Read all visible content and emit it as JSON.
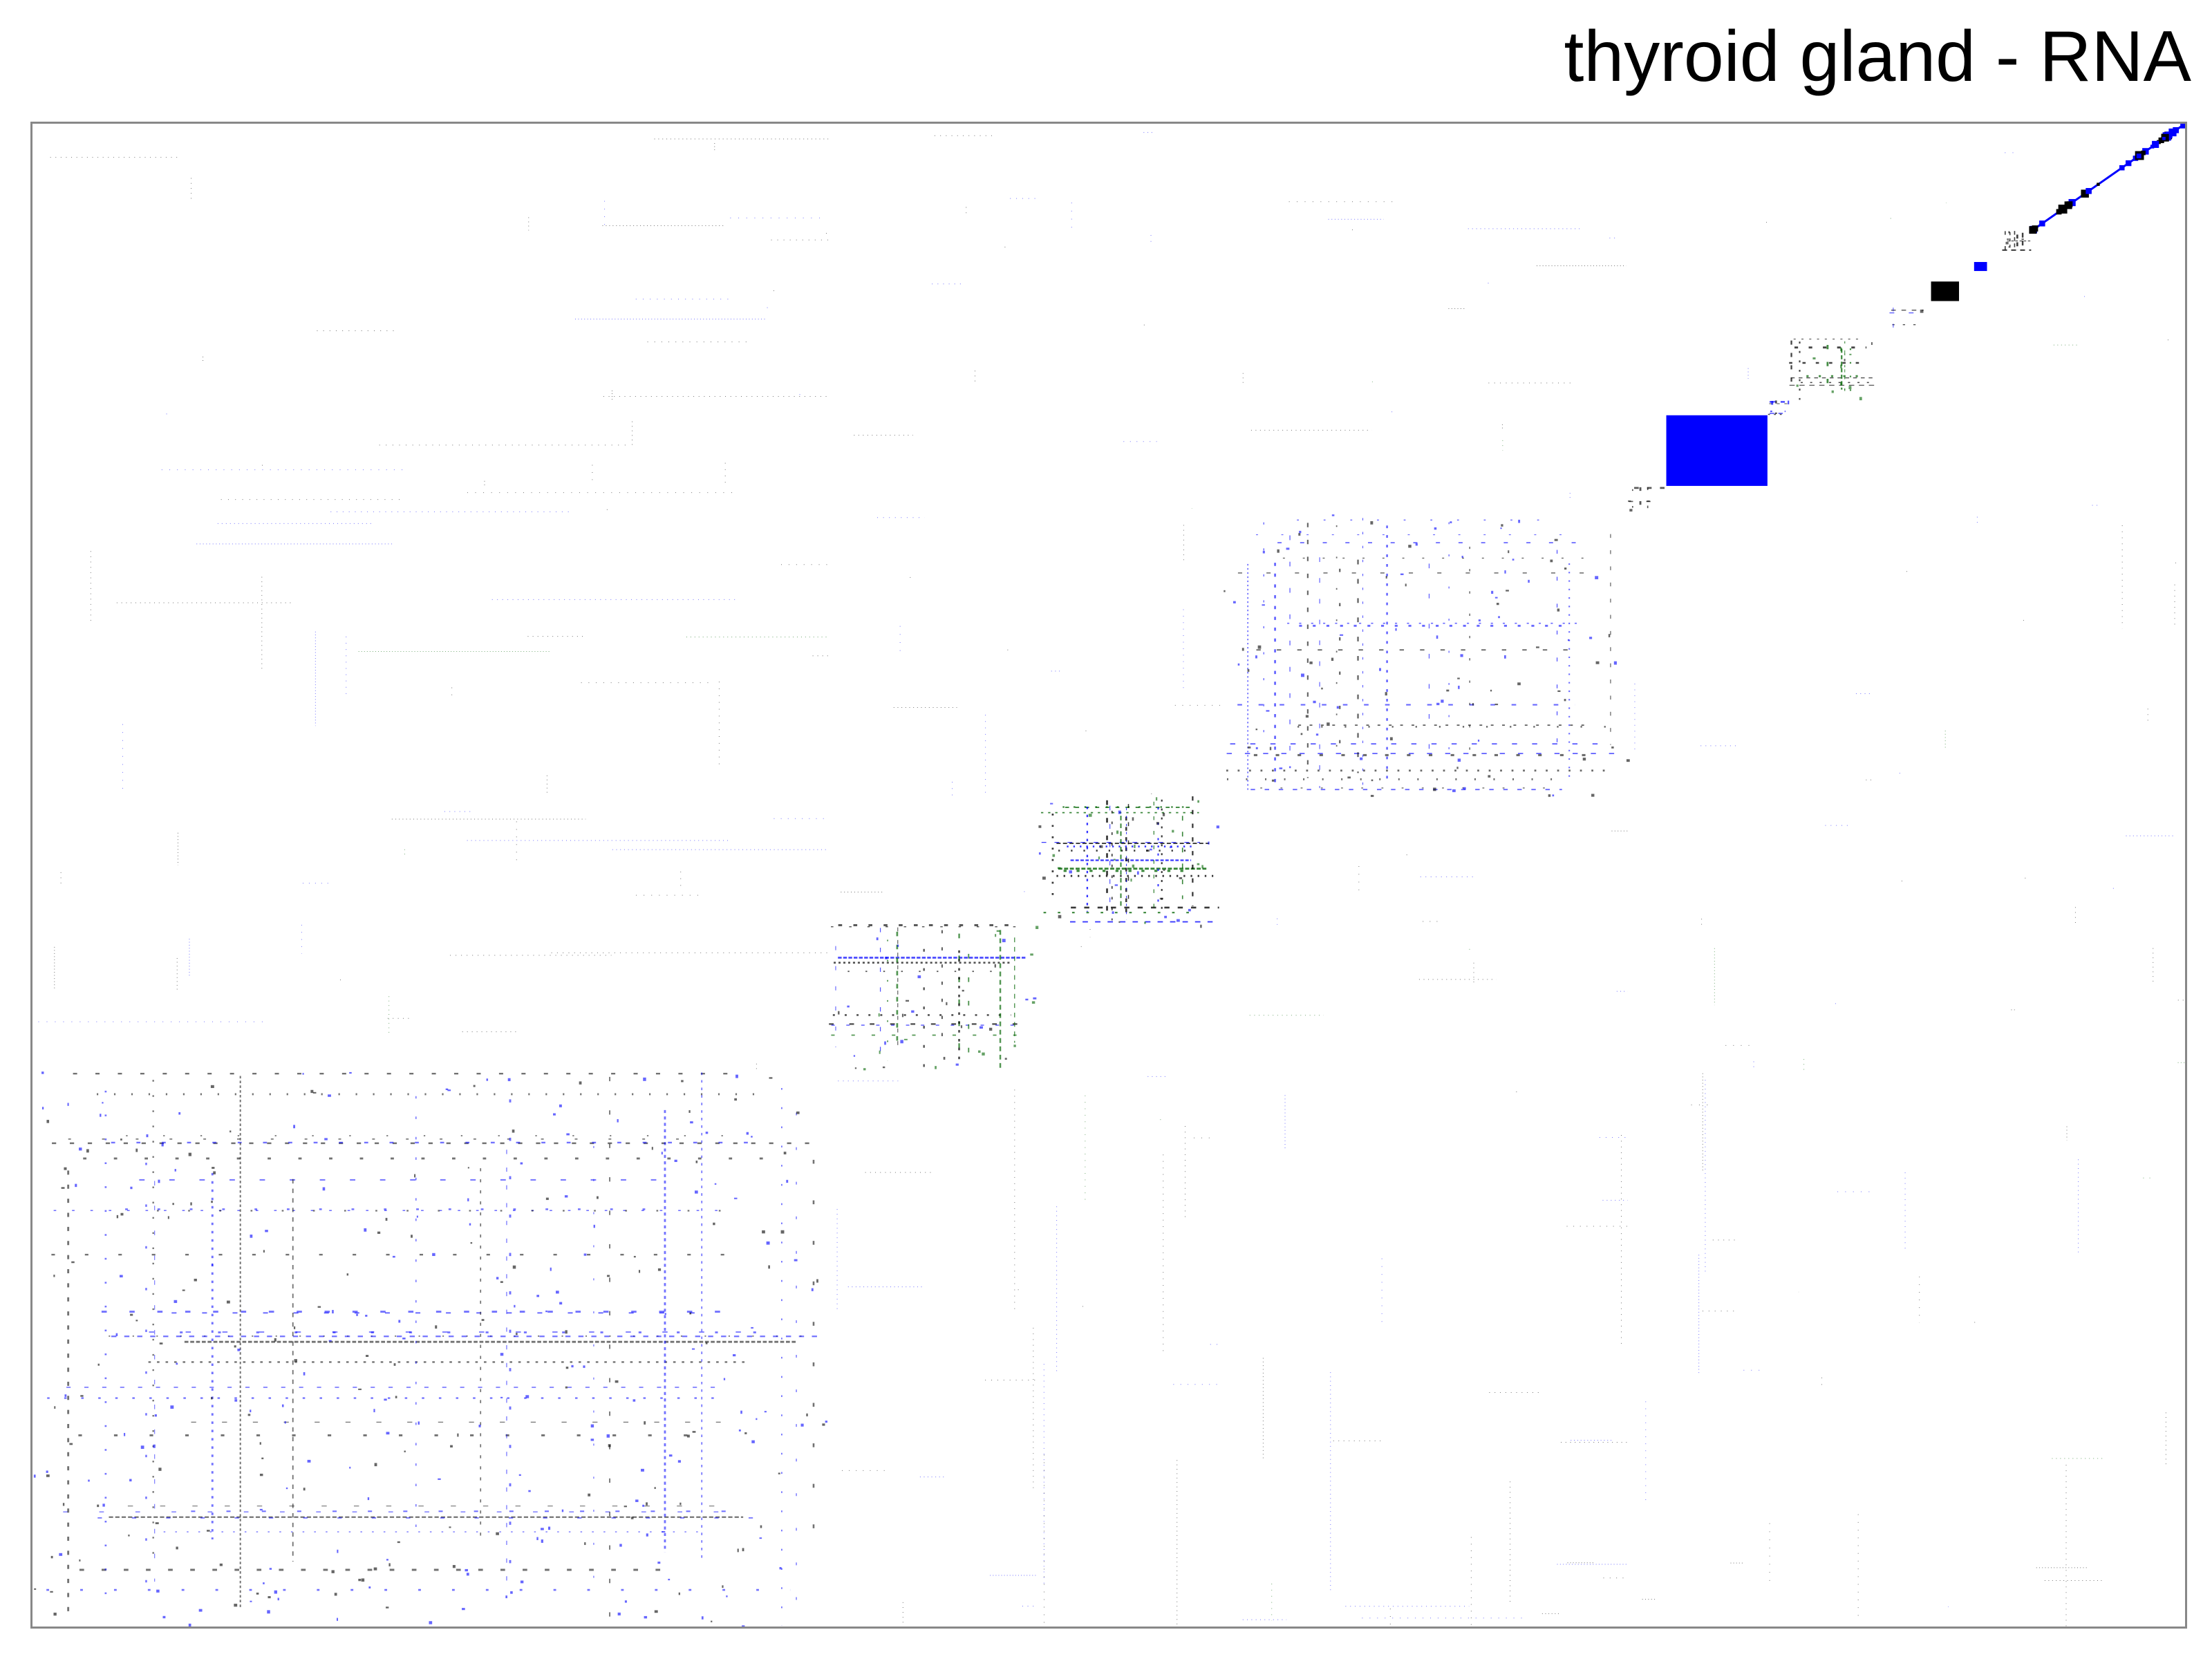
{
  "chart_data": {
    "type": "heatmap",
    "title": "thyroid gland - RNA",
    "xlabel": "",
    "ylabel": "",
    "grid": false,
    "legend": "none",
    "axis_range": [
      0,
      1
    ],
    "colors": {
      "black": "#000000",
      "blue": "#0000ff",
      "green": "#006400",
      "background": "#ffffff"
    },
    "blocks": [
      {
        "name": "cluster-1",
        "range": [
          0.0,
          0.37
        ],
        "pattern": "sparse",
        "density": 0.1,
        "colors": [
          "blue",
          "black"
        ]
      },
      {
        "name": "cluster-2",
        "range": [
          0.37,
          0.467
        ],
        "pattern": "dense",
        "density": 0.35,
        "colors": [
          "green",
          "black",
          "blue"
        ]
      },
      {
        "name": "cluster-3",
        "range": [
          0.467,
          0.553
        ],
        "pattern": "dense",
        "density": 0.55,
        "colors": [
          "green",
          "blue",
          "black"
        ]
      },
      {
        "name": "cluster-4",
        "range": [
          0.553,
          0.741
        ],
        "pattern": "medium",
        "density": 0.18,
        "colors": [
          "black",
          "blue"
        ]
      },
      {
        "name": "cluster-5",
        "range": [
          0.741,
          0.759
        ],
        "pattern": "sparse",
        "density": 0.3,
        "colors": [
          "black"
        ]
      },
      {
        "name": "cluster-6",
        "range": [
          0.759,
          0.806
        ],
        "pattern": "solid",
        "density": 1.0,
        "colors": [
          "blue"
        ]
      },
      {
        "name": "cluster-7",
        "range": [
          0.806,
          0.816
        ],
        "pattern": "sparse",
        "density": 0.4,
        "colors": [
          "black",
          "blue"
        ]
      },
      {
        "name": "cluster-8",
        "range": [
          0.816,
          0.857
        ],
        "pattern": "dense",
        "density": 0.45,
        "colors": [
          "black",
          "green"
        ]
      },
      {
        "name": "cluster-9",
        "range": [
          0.861,
          0.879
        ],
        "pattern": "sparse",
        "density": 0.35,
        "colors": [
          "black",
          "blue"
        ]
      },
      {
        "name": "cluster-10",
        "range": [
          0.882,
          0.895
        ],
        "pattern": "solid",
        "density": 1.0,
        "colors": [
          "black"
        ]
      },
      {
        "name": "cluster-11",
        "range": [
          0.902,
          0.908
        ],
        "pattern": "solid",
        "density": 1.0,
        "colors": [
          "blue"
        ]
      },
      {
        "name": "cluster-12",
        "range": [
          0.915,
          0.929
        ],
        "pattern": "sparse",
        "density": 0.5,
        "colors": [
          "black"
        ]
      },
      {
        "name": "cluster-13",
        "range": [
          0.929,
          1.0
        ],
        "pattern": "diagonal",
        "density": 0.6,
        "colors": [
          "blue",
          "black"
        ]
      }
    ]
  }
}
